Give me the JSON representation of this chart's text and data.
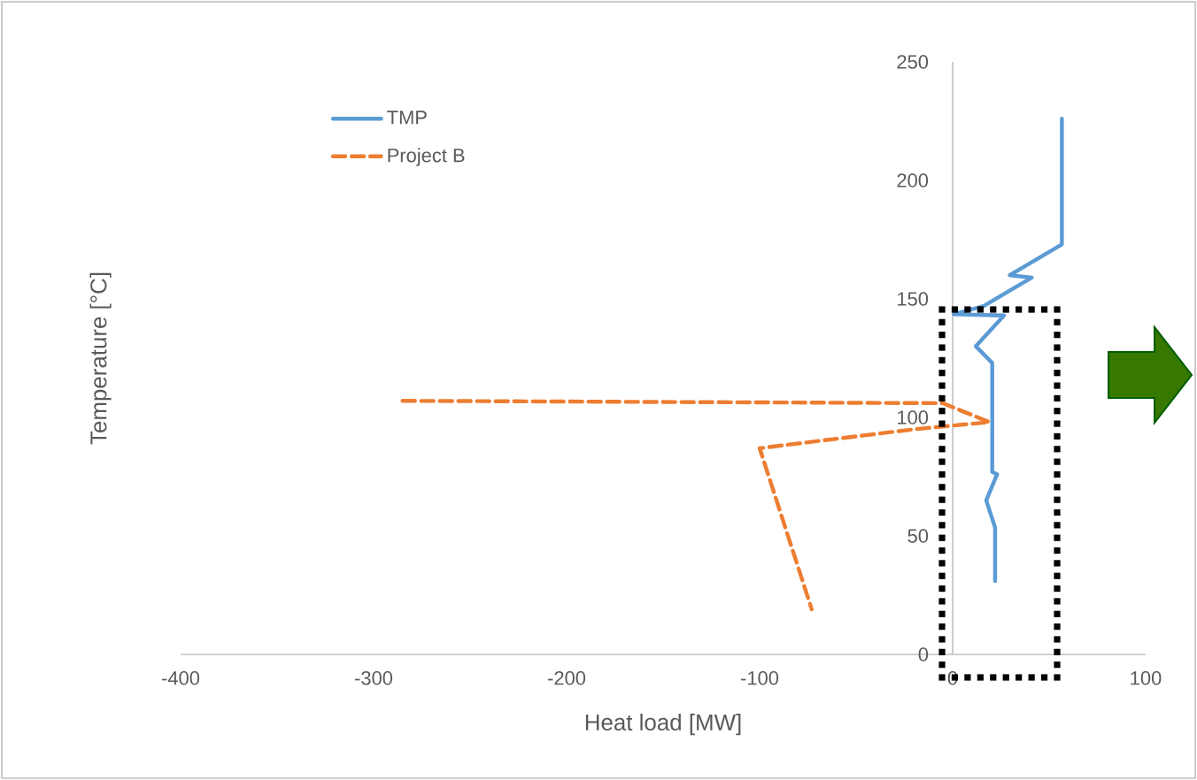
{
  "chart_data": {
    "type": "line",
    "xlabel": "Heat load [MW]",
    "ylabel": "Temperature [°C]",
    "xlim": [
      -400,
      100
    ],
    "xticks": [
      -400,
      -300,
      -200,
      -100,
      0,
      100
    ],
    "ylim": [
      0,
      250
    ],
    "yticks": [
      0,
      50,
      100,
      150,
      200,
      250
    ],
    "grid": false,
    "legend": "top left",
    "series": [
      {
        "name": "TMP",
        "color": "#5b9bd5",
        "line_style": "solid",
        "x": [
          56.6,
          56.6,
          29.6,
          41,
          16,
          0.6,
          26.6,
          12,
          20.5,
          20.5,
          23,
          17.4,
          22,
          22
        ],
        "values": [
          226,
          173,
          160,
          159,
          147,
          143.5,
          143,
          130,
          123,
          77,
          76,
          65,
          53.5,
          31
        ]
      },
      {
        "name": "Project B",
        "color": "#ed7d31",
        "line_style": "dashed",
        "x": [
          -285,
          -5,
          19,
          -20,
          -100,
          -73
        ],
        "values": [
          107,
          106,
          98,
          95,
          87,
          19
        ]
      }
    ]
  }
}
